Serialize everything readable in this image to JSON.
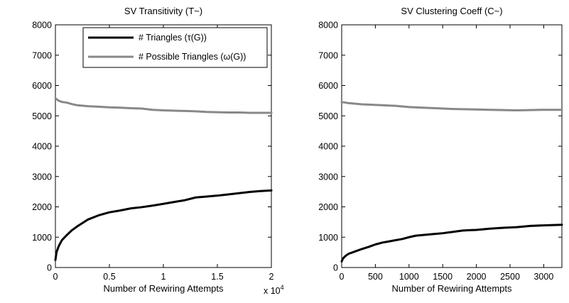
{
  "chart_data": [
    {
      "type": "line",
      "title": "SV Transitivity (T~)",
      "xlabel": "Number of Rewiring Attempts",
      "ylabel": "",
      "x_exponent_label": "x 10",
      "x_exponent_power": "4",
      "xlim": [
        0,
        20000
      ],
      "ylim": [
        0,
        8000
      ],
      "xticks": [
        0,
        5000,
        10000,
        15000,
        20000
      ],
      "xtick_labels": [
        "0",
        "0.5",
        "1",
        "1.5",
        "2"
      ],
      "yticks": [
        0,
        1000,
        2000,
        3000,
        4000,
        5000,
        6000,
        7000,
        8000
      ],
      "ytick_labels": [
        "0",
        "1000",
        "2000",
        "3000",
        "4000",
        "5000",
        "6000",
        "7000",
        "8000"
      ],
      "legend": {
        "position": "top-center",
        "entries": [
          "# Triangles (τ(G))",
          "# Possible Triangles (ω(G))"
        ]
      },
      "series": [
        {
          "name": "# Triangles (τ(G))",
          "color": "#000000",
          "x": [
            0,
            100,
            300,
            600,
            1000,
            1500,
            2000,
            3000,
            4000,
            5000,
            6000,
            7000,
            8000,
            9000,
            10000,
            11000,
            12000,
            13000,
            14000,
            15000,
            16000,
            17000,
            18000,
            19000,
            20000
          ],
          "y": [
            250,
            500,
            700,
            900,
            1050,
            1220,
            1350,
            1580,
            1720,
            1820,
            1880,
            1950,
            1990,
            2040,
            2100,
            2160,
            2220,
            2310,
            2340,
            2370,
            2410,
            2450,
            2490,
            2520,
            2540
          ]
        },
        {
          "name": "# Possible Triangles (ω(G))",
          "color": "#888888",
          "x": [
            0,
            100,
            300,
            600,
            1000,
            1500,
            2000,
            3000,
            4000,
            5000,
            6000,
            7000,
            8000,
            9000,
            10000,
            11000,
            12000,
            13000,
            14000,
            15000,
            16000,
            17000,
            18000,
            19000,
            20000
          ],
          "y": [
            5580,
            5550,
            5500,
            5460,
            5440,
            5390,
            5350,
            5320,
            5300,
            5280,
            5270,
            5250,
            5240,
            5200,
            5180,
            5170,
            5160,
            5150,
            5130,
            5120,
            5110,
            5110,
            5100,
            5100,
            5100
          ]
        }
      ]
    },
    {
      "type": "line",
      "title": "SV Clustering Coeff (C~)",
      "xlabel": "Number of Rewiring Attempts",
      "ylabel": "",
      "xlim": [
        0,
        3270
      ],
      "ylim": [
        0,
        8000
      ],
      "xticks": [
        0,
        500,
        1000,
        1500,
        2000,
        2500,
        3000
      ],
      "xtick_labels": [
        "0",
        "500",
        "1000",
        "1500",
        "2000",
        "2500",
        "3000"
      ],
      "yticks": [
        0,
        1000,
        2000,
        3000,
        4000,
        5000,
        6000,
        7000,
        8000
      ],
      "ytick_labels": [
        "0",
        "1000",
        "2000",
        "3000",
        "4000",
        "5000",
        "6000",
        "7000",
        "8000"
      ],
      "series": [
        {
          "color": "#000000",
          "x": [
            0,
            20,
            50,
            100,
            200,
            300,
            400,
            500,
            600,
            700,
            800,
            900,
            1000,
            1100,
            1200,
            1300,
            1400,
            1500,
            1600,
            1700,
            1800,
            1900,
            2000,
            2200,
            2400,
            2600,
            2800,
            3000,
            3270
          ],
          "y": [
            200,
            300,
            370,
            450,
            530,
            610,
            680,
            760,
            820,
            860,
            900,
            940,
            1000,
            1050,
            1070,
            1090,
            1110,
            1130,
            1160,
            1190,
            1220,
            1230,
            1240,
            1280,
            1310,
            1330,
            1370,
            1390,
            1410
          ]
        },
        {
          "color": "#888888",
          "x": [
            0,
            50,
            100,
            200,
            300,
            400,
            500,
            600,
            700,
            800,
            900,
            1000,
            1200,
            1400,
            1600,
            1800,
            2000,
            2200,
            2400,
            2600,
            2800,
            3000,
            3270
          ],
          "y": [
            5450,
            5440,
            5420,
            5400,
            5380,
            5370,
            5360,
            5350,
            5340,
            5330,
            5310,
            5290,
            5270,
            5250,
            5230,
            5220,
            5210,
            5200,
            5190,
            5180,
            5190,
            5200,
            5200
          ]
        }
      ]
    }
  ]
}
